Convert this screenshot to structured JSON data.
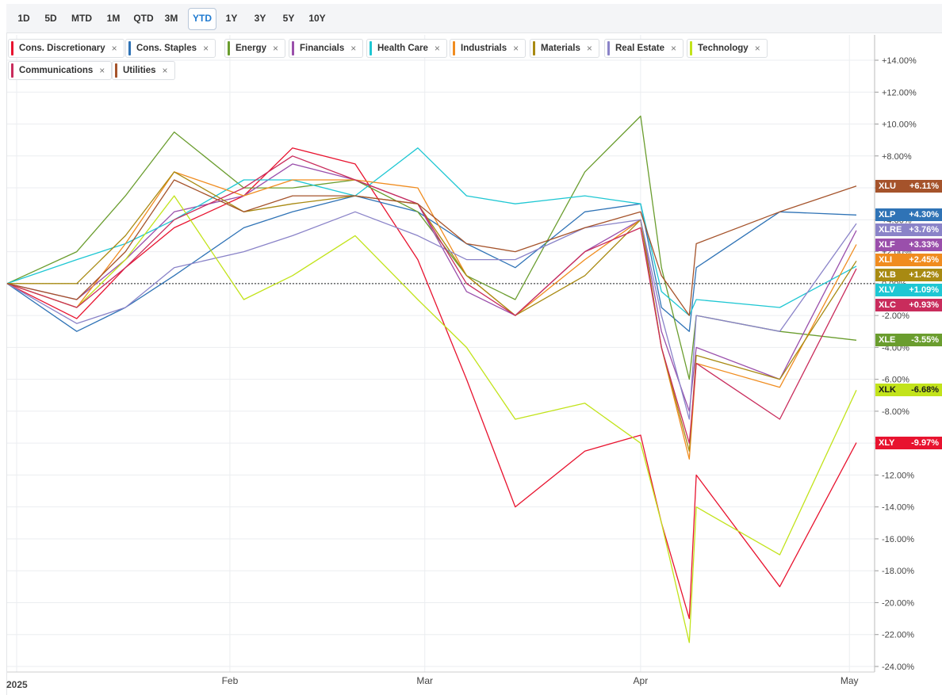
{
  "range_buttons": [
    {
      "label": "1D"
    },
    {
      "label": "5D"
    },
    {
      "label": "MTD"
    },
    {
      "label": "1M"
    },
    {
      "label": "QTD"
    },
    {
      "label": "3M"
    },
    {
      "label": "YTD",
      "active": true
    },
    {
      "label": "1Y"
    },
    {
      "label": "3Y"
    },
    {
      "label": "5Y"
    },
    {
      "label": "10Y"
    }
  ],
  "chart_data": {
    "type": "line",
    "title": "",
    "xlabel": "",
    "ylabel": "",
    "ylim": [
      -24,
      16
    ],
    "y_ticks": [
      "+14.00%",
      "+12.00%",
      "+10.00%",
      "+8.00%",
      "+6.00%",
      "+4.00%",
      "+2.00%",
      "0.00%",
      "-2.00%",
      "-4.00%",
      "-6.00%",
      "-8.00%",
      "-10.00%",
      "-12.00%",
      "-14.00%",
      "-16.00%",
      "-18.00%",
      "-20.00%",
      "-22.00%",
      "-24.00%"
    ],
    "x_ticks": [
      {
        "label": "2025",
        "date": "2025-01-01"
      },
      {
        "label": "Feb",
        "date": "2025-02-01"
      },
      {
        "label": "Mar",
        "date": "2025-03-01"
      },
      {
        "label": "Apr",
        "date": "2025-04-01"
      },
      {
        "label": "May",
        "date": "2025-05-01"
      }
    ],
    "x_range": [
      "2024-12-31",
      "2025-05-02"
    ],
    "baseline": 0,
    "legend_position": "top-left",
    "x": [
      "2024-12-31",
      "2025-01-10",
      "2025-01-17",
      "2025-01-24",
      "2025-02-03",
      "2025-02-10",
      "2025-02-19",
      "2025-02-28",
      "2025-03-07",
      "2025-03-14",
      "2025-03-24",
      "2025-04-01",
      "2025-04-04",
      "2025-04-08",
      "2025-04-09",
      "2025-04-21",
      "2025-05-02"
    ],
    "series": [
      {
        "name": "Cons. Discretionary",
        "ticker": "XLY",
        "color": "#e8132f",
        "label": "-9.97%",
        "values": [
          0,
          -2.2,
          1,
          3.5,
          5.5,
          8.5,
          7.5,
          1.5,
          -6,
          -14,
          -10.5,
          -9.5,
          -15,
          -21,
          -12,
          -19,
          -9.97
        ]
      },
      {
        "name": "Cons. Staples",
        "ticker": "XLP",
        "color": "#2f73b6",
        "label": "+4.30%",
        "values": [
          0,
          -3,
          -1.5,
          0.5,
          3.5,
          4.5,
          5.5,
          4.5,
          2.5,
          1,
          4.5,
          5,
          -1.5,
          -3,
          1,
          4.5,
          4.3
        ]
      },
      {
        "name": "Energy",
        "ticker": "XLE",
        "color": "#6a9d2e",
        "label": "-3.55%",
        "values": [
          0,
          2,
          5.5,
          9.5,
          6,
          6,
          6.5,
          4.5,
          0.5,
          -1,
          7,
          10.5,
          1,
          -6,
          -2,
          -3,
          -3.55
        ]
      },
      {
        "name": "Financials",
        "ticker": "XLF",
        "color": "#9a4fab",
        "label": "+3.33%",
        "values": [
          0,
          -1,
          1.5,
          4.5,
          5.5,
          7.5,
          6.5,
          5,
          -0.5,
          -2,
          2,
          4,
          -3,
          -8,
          -4,
          -6,
          3.33
        ]
      },
      {
        "name": "Health Care",
        "ticker": "XLV",
        "color": "#1ec7d3",
        "label": "+1.09%",
        "values": [
          0,
          1.5,
          2.5,
          4,
          6.5,
          6.5,
          5.5,
          8.5,
          5.5,
          5,
          5.5,
          5,
          -0.5,
          -2,
          -1,
          -1.5,
          1.09
        ]
      },
      {
        "name": "Industrials",
        "ticker": "XLI",
        "color": "#f08c1f",
        "label": "+2.45%",
        "values": [
          0,
          -1.5,
          2.5,
          7,
          5.5,
          6.5,
          6.5,
          6,
          0.5,
          -2,
          1.5,
          4,
          -4,
          -11,
          -5,
          -6.5,
          2.45
        ]
      },
      {
        "name": "Materials",
        "ticker": "XLB",
        "color": "#a88a12",
        "label": "+1.42%",
        "values": [
          0,
          0,
          3,
          7,
          4.5,
          5,
          5.5,
          5,
          0.5,
          -2,
          0.5,
          4,
          -4,
          -10.5,
          -4.5,
          -6,
          1.42
        ]
      },
      {
        "name": "Real Estate",
        "ticker": "XLRE",
        "color": "#8a83c8",
        "label": "+3.76%",
        "values": [
          0,
          -2.5,
          -1.5,
          1,
          2,
          3,
          4.5,
          3,
          1.5,
          1.5,
          3.5,
          4,
          -2,
          -8.5,
          -2,
          -3,
          3.76
        ]
      },
      {
        "name": "Technology",
        "ticker": "XLK",
        "color": "#c2e31a",
        "label": "-6.68%",
        "values": [
          0,
          -1.5,
          1.5,
          5.5,
          -1,
          0.5,
          3,
          -1,
          -4,
          -8.5,
          -7.5,
          -10,
          -15,
          -22.5,
          -14,
          -17,
          -6.68
        ]
      },
      {
        "name": "Communications",
        "ticker": "XLC",
        "color": "#c92c5c",
        "label": "+0.93%",
        "values": [
          0,
          -1.5,
          1,
          4,
          6,
          8,
          6.5,
          5,
          0,
          -2,
          2,
          3.5,
          -4,
          -10,
          -5,
          -8.5,
          0.93
        ]
      },
      {
        "name": "Utilities",
        "ticker": "XLU",
        "color": "#a5532b",
        "label": "+6.11%",
        "values": [
          0,
          -1,
          2,
          6.5,
          4.5,
          5.5,
          5.5,
          5,
          2.5,
          2,
          3.5,
          4.5,
          0.5,
          -2,
          2.5,
          4.5,
          6.11
        ]
      }
    ]
  }
}
